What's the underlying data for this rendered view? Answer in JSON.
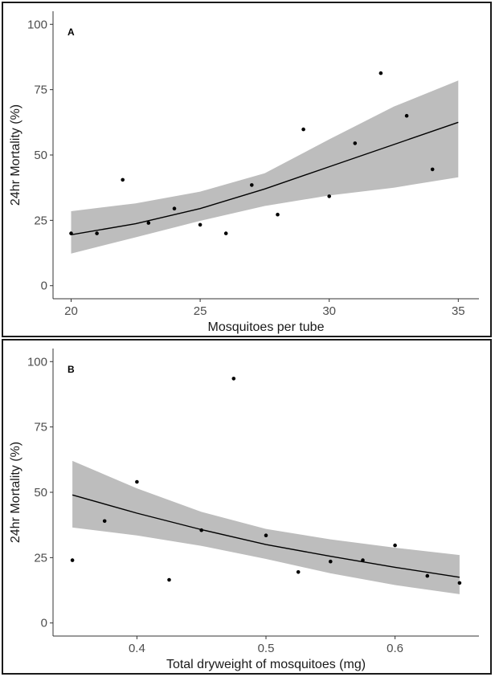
{
  "chart_data": [
    {
      "type": "scatter",
      "panel_label": "A",
      "xlabel": "Mosquitoes per tube",
      "ylabel": "24hr Mortality (%)",
      "xlim": [
        19.3,
        35.8
      ],
      "ylim": [
        -5,
        105
      ],
      "x_ticks": [
        20,
        25,
        30,
        35
      ],
      "x_tick_labels": [
        "20",
        "25",
        "30",
        "35"
      ],
      "y_ticks": [
        0,
        25,
        50,
        75,
        100
      ],
      "y_tick_labels": [
        "0",
        "25",
        "50",
        "75",
        "100"
      ],
      "grid": false,
      "points": [
        {
          "x": 20,
          "y": 20
        },
        {
          "x": 21,
          "y": 20
        },
        {
          "x": 22,
          "y": 40.5
        },
        {
          "x": 23,
          "y": 24
        },
        {
          "x": 24,
          "y": 29.5
        },
        {
          "x": 25,
          "y": 23.3
        },
        {
          "x": 26,
          "y": 20
        },
        {
          "x": 27,
          "y": 38.5
        },
        {
          "x": 28,
          "y": 27.2
        },
        {
          "x": 29,
          "y": 59.8
        },
        {
          "x": 30,
          "y": 34.2
        },
        {
          "x": 31,
          "y": 54.5
        },
        {
          "x": 32,
          "y": 81.3
        },
        {
          "x": 33,
          "y": 65
        },
        {
          "x": 34,
          "y": 44.5
        }
      ],
      "fit": {
        "x": [
          20,
          22.5,
          25,
          27.5,
          30,
          32.5,
          35
        ],
        "y": [
          19.5,
          23.7,
          29.5,
          37,
          45.5,
          54,
          62.5
        ],
        "lower": [
          12.3,
          18.5,
          24.8,
          30.5,
          34.5,
          37.5,
          41.5
        ],
        "upper": [
          28.5,
          31.5,
          36,
          43,
          56,
          68.5,
          78.5
        ]
      }
    },
    {
      "type": "scatter",
      "panel_label": "B",
      "xlabel": "Total dryweight of mosquitoes (mg)",
      "ylabel": "24hr Mortality (%)",
      "xlim": [
        0.335,
        0.665
      ],
      "ylim": [
        -5,
        105
      ],
      "x_ticks": [
        0.4,
        0.5,
        0.6
      ],
      "x_tick_labels": [
        "0.4",
        "0.5",
        "0.6"
      ],
      "y_ticks": [
        0,
        25,
        50,
        75,
        100
      ],
      "y_tick_labels": [
        "0",
        "25",
        "50",
        "75",
        "100"
      ],
      "grid": false,
      "points": [
        {
          "x": 0.35,
          "y": 24
        },
        {
          "x": 0.375,
          "y": 39
        },
        {
          "x": 0.4,
          "y": 54
        },
        {
          "x": 0.425,
          "y": 16.5
        },
        {
          "x": 0.45,
          "y": 35.5
        },
        {
          "x": 0.475,
          "y": 93.5
        },
        {
          "x": 0.5,
          "y": 33.5
        },
        {
          "x": 0.525,
          "y": 19.5
        },
        {
          "x": 0.55,
          "y": 23.5
        },
        {
          "x": 0.575,
          "y": 24
        },
        {
          "x": 0.6,
          "y": 29.7
        },
        {
          "x": 0.625,
          "y": 18
        },
        {
          "x": 0.65,
          "y": 15.3
        }
      ],
      "fit": {
        "x": [
          0.35,
          0.4,
          0.45,
          0.5,
          0.55,
          0.6,
          0.65
        ],
        "y": [
          49,
          42,
          35.7,
          30,
          25.5,
          21.3,
          17.5
        ],
        "lower": [
          36.5,
          33.5,
          29.5,
          24.5,
          19,
          14.5,
          11
        ],
        "upper": [
          62,
          51.5,
          42.5,
          36,
          32,
          28.8,
          26
        ]
      }
    }
  ]
}
